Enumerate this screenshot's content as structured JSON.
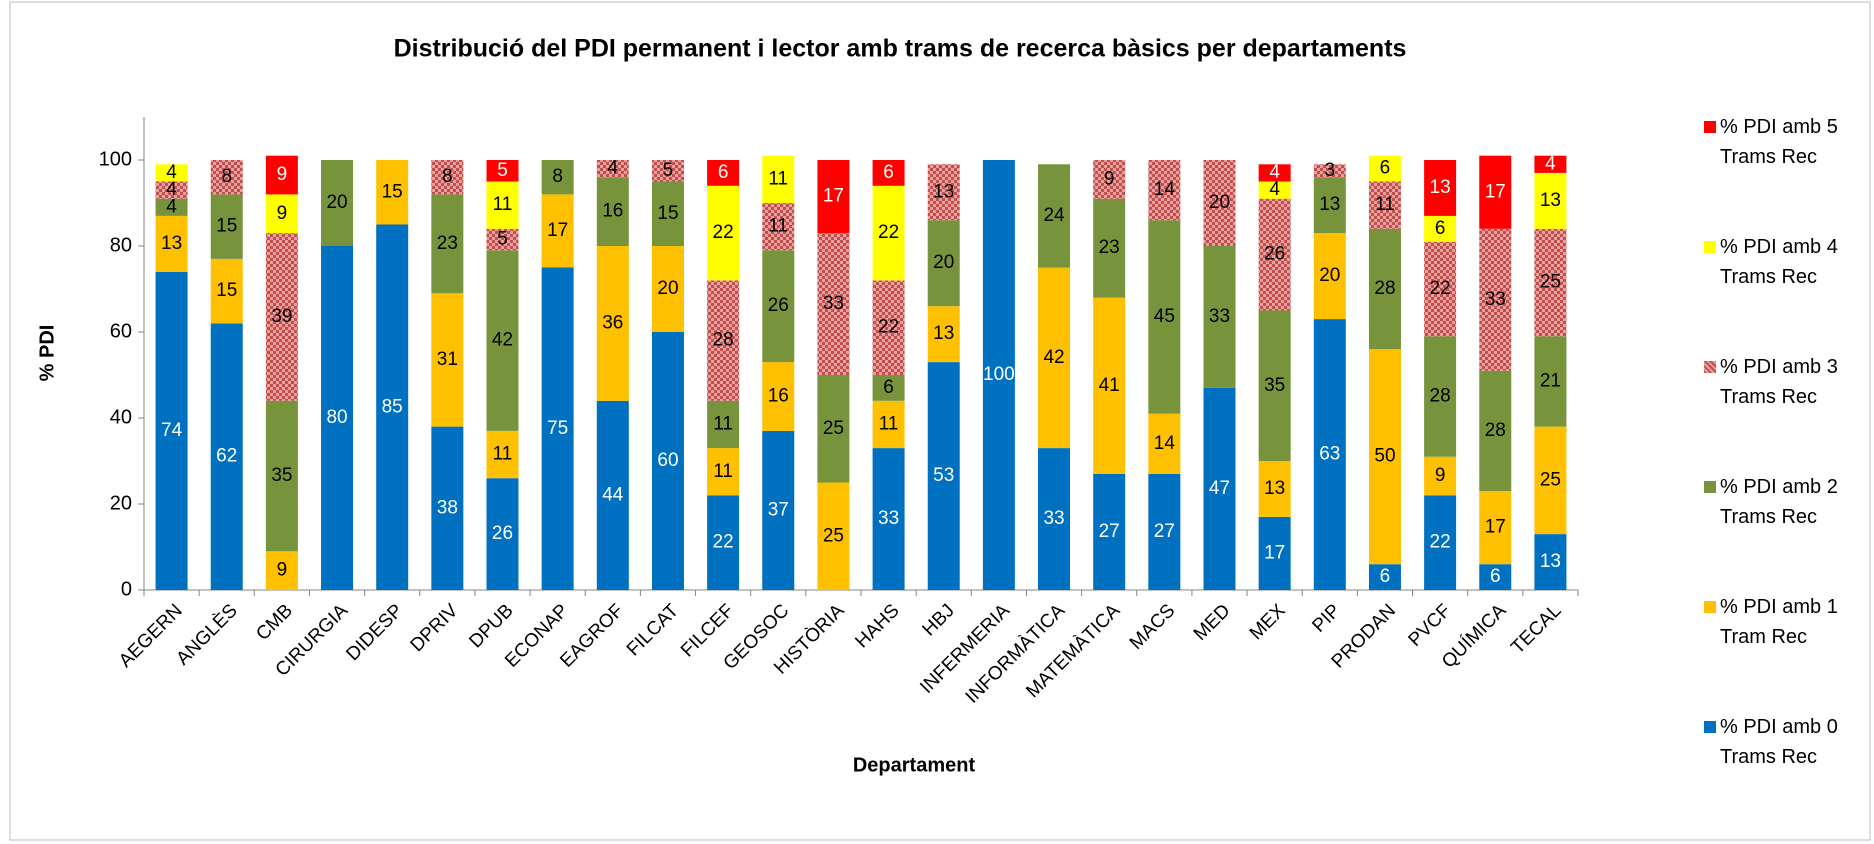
{
  "chart_data": {
    "type": "stacked_bar",
    "title": "Distribució del PDI permanent i lector amb trams de recerca bàsics per departaments",
    "x_label": "Departament",
    "y_label": "% PDI",
    "categories": [
      "AEGERN",
      "ANGLÈS",
      "CMB",
      "CIRURGIA",
      "DIDESP",
      "DPRIV",
      "DPUB",
      "ECONAP",
      "EAGROF",
      "FILCAT",
      "FILCEF",
      "GEOSOC",
      "HISTÒRIA",
      "HAHS",
      "HBJ",
      "INFERMERIA",
      "INFORMÀTICA",
      "MATEMÀTICA",
      "MACS",
      "MED",
      "MEX",
      "PIP",
      "PRODAN",
      "PVCF",
      "QUÍMICA",
      "TECAL"
    ],
    "series": [
      {
        "name": "% PDI amb 0 Trams Rec",
        "color": "#0070c0",
        "label_color": "#ffffff",
        "values": [
          74,
          62,
          null,
          80,
          85,
          38,
          26,
          75,
          44,
          60,
          22,
          37,
          null,
          33,
          53,
          100,
          33,
          27,
          27,
          47,
          17,
          63,
          6,
          22,
          6,
          13
        ]
      },
      {
        "name": "% PDI amb 1 Tram Rec",
        "color": "#ffc000",
        "label_color": "#000000",
        "values": [
          13,
          15,
          9,
          null,
          15,
          31,
          11,
          17,
          36,
          20,
          11,
          16,
          25,
          11,
          13,
          null,
          42,
          41,
          14,
          null,
          13,
          20,
          50,
          9,
          17,
          25
        ]
      },
      {
        "name": "% PDI amb 2 Trams Rec",
        "color": "#77933c",
        "label_color": "#000000",
        "values": [
          4,
          15,
          35,
          20,
          null,
          23,
          42,
          8,
          16,
          15,
          11,
          26,
          25,
          6,
          20,
          null,
          24,
          23,
          45,
          33,
          35,
          13,
          28,
          28,
          28,
          21
        ]
      },
      {
        "name": "% PDI amb 3 Trams Rec",
        "color": "#e6a0a0",
        "pattern": true,
        "label_color": "#000000",
        "values": [
          4,
          8,
          39,
          null,
          null,
          8,
          5,
          null,
          4,
          5,
          28,
          11,
          33,
          22,
          13,
          null,
          null,
          9,
          14,
          20,
          26,
          3,
          11,
          22,
          33,
          25
        ]
      },
      {
        "name": "% PDI amb 4 Trams Rec",
        "color": "#ffff00",
        "label_color": "#000000",
        "values": [
          4,
          null,
          9,
          null,
          null,
          null,
          11,
          null,
          null,
          null,
          22,
          11,
          null,
          22,
          null,
          null,
          null,
          null,
          null,
          null,
          4,
          null,
          6,
          6,
          null,
          13
        ]
      },
      {
        "name": "% PDI amb 5 Trams Rec",
        "color": "#ff0000",
        "label_color": "#ffffff",
        "values": [
          null,
          null,
          9,
          null,
          null,
          null,
          5,
          null,
          null,
          null,
          6,
          null,
          17,
          6,
          null,
          null,
          null,
          null,
          null,
          null,
          4,
          null,
          null,
          13,
          17,
          4
        ]
      }
    ],
    "ylim": [
      0,
      110
    ],
    "yticks": [
      0,
      20,
      40,
      60,
      80,
      100
    ],
    "legend": "right"
  }
}
